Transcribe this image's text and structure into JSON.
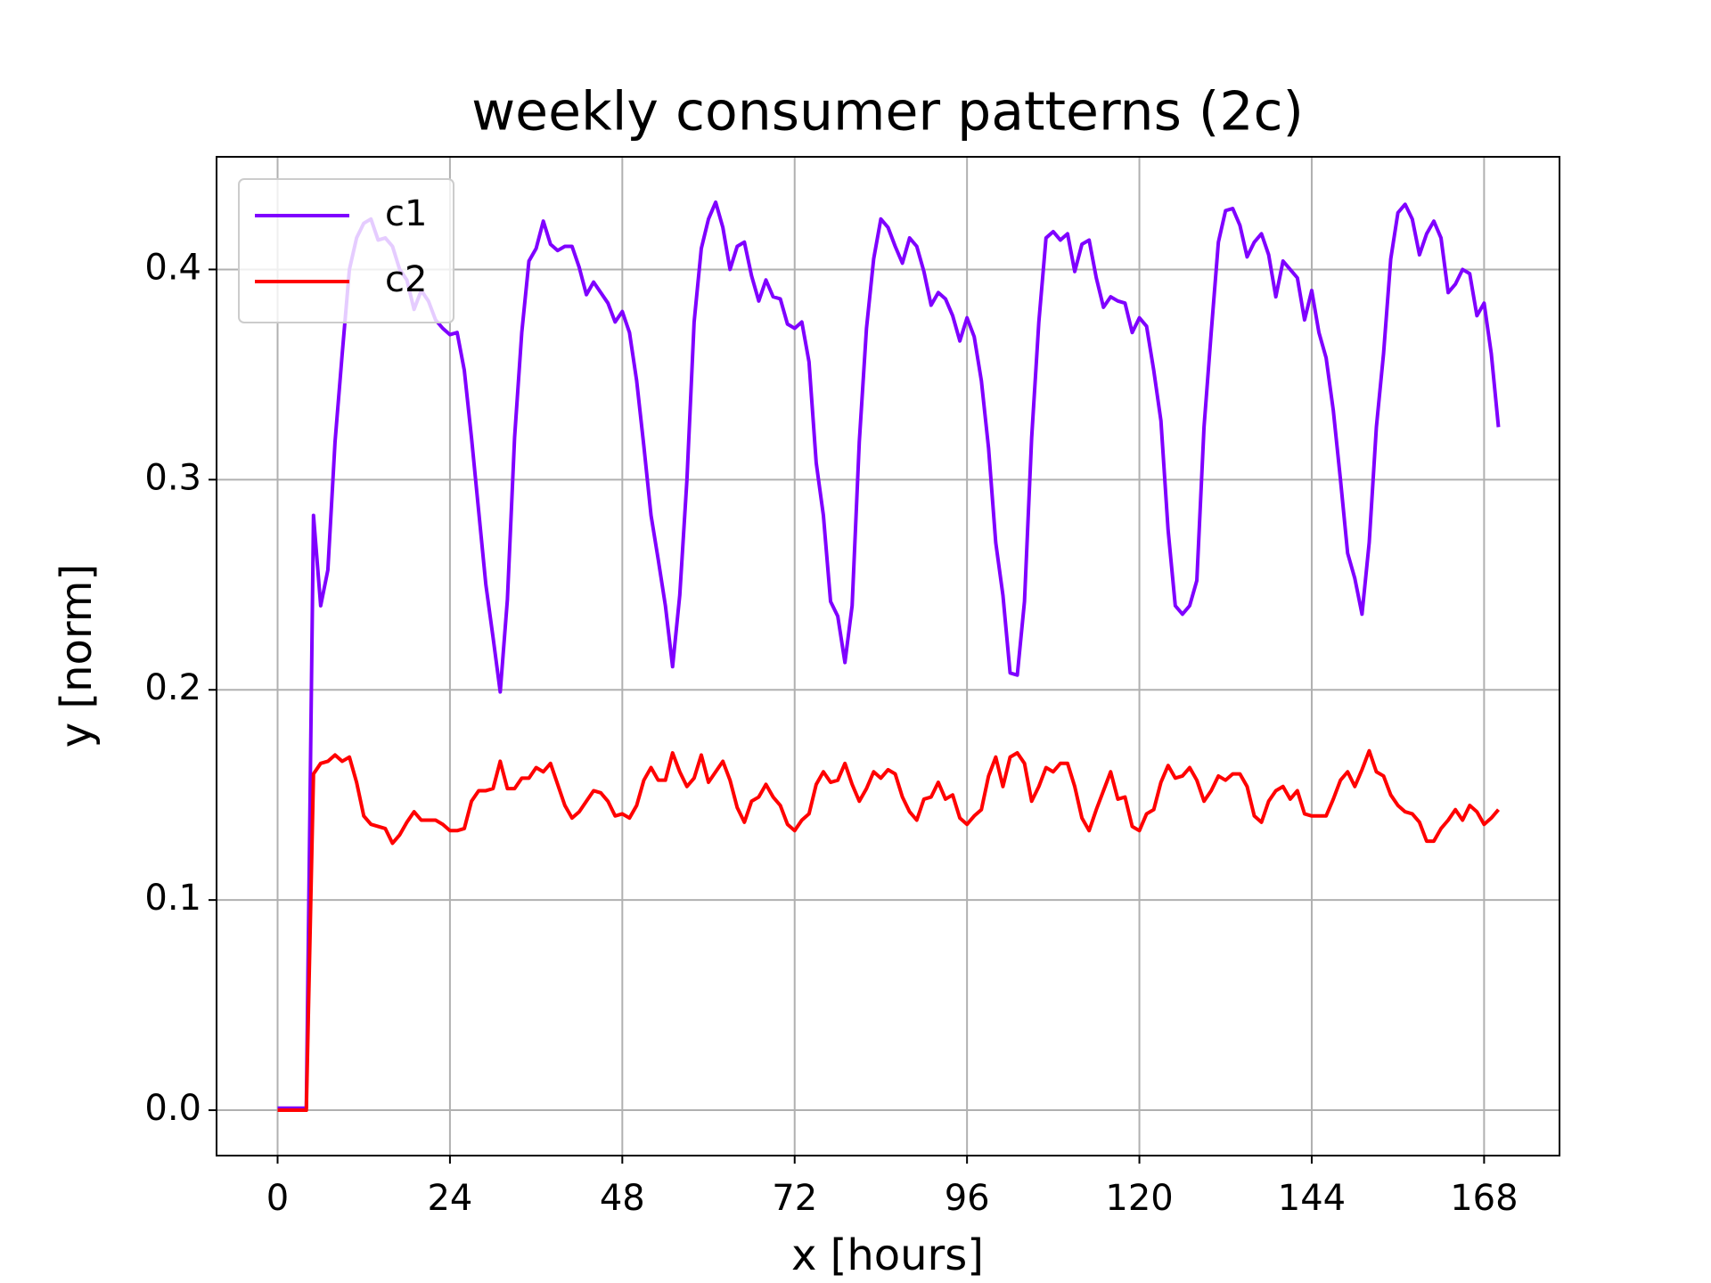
{
  "chart_data": {
    "type": "line",
    "title": "weekly consumer patterns (2c)",
    "x_label": "x [hours]",
    "y_label": "y [norm]",
    "x": [
      0,
      1,
      2,
      3,
      4,
      5,
      6,
      7,
      8,
      9,
      10,
      11,
      12,
      13,
      14,
      15,
      16,
      17,
      18,
      19,
      20,
      21,
      22,
      23,
      24,
      25,
      26,
      27,
      28,
      29,
      30,
      31,
      32,
      33,
      34,
      35,
      36,
      37,
      38,
      39,
      40,
      41,
      42,
      43,
      44,
      45,
      46,
      47,
      48,
      49,
      50,
      51,
      52,
      53,
      54,
      55,
      56,
      57,
      58,
      59,
      60,
      61,
      62,
      63,
      64,
      65,
      66,
      67,
      68,
      69,
      70,
      71,
      72,
      73,
      74,
      75,
      76,
      77,
      78,
      79,
      80,
      81,
      82,
      83,
      84,
      85,
      86,
      87,
      88,
      89,
      90,
      91,
      92,
      93,
      94,
      95,
      96,
      97,
      98,
      99,
      100,
      101,
      102,
      103,
      104,
      105,
      106,
      107,
      108,
      109,
      110,
      111,
      112,
      113,
      114,
      115,
      116,
      117,
      118,
      119,
      120,
      121,
      122,
      123,
      124,
      125,
      126,
      127,
      128,
      129,
      130,
      131,
      132,
      133,
      134,
      135,
      136,
      137,
      138,
      139,
      140,
      141,
      142,
      143,
      144,
      145,
      146,
      147,
      148,
      149,
      150,
      151,
      152,
      153,
      154,
      155,
      156,
      157,
      158,
      159,
      160,
      161,
      162,
      163,
      164,
      165,
      166,
      167,
      168,
      169,
      170
    ],
    "series": [
      {
        "name": "c1",
        "color": "#7f00ff",
        "values": [
          0.001,
          0.001,
          0.001,
          0.001,
          0.001,
          0.283,
          0.24,
          0.257,
          0.318,
          0.36,
          0.4,
          0.415,
          0.422,
          0.424,
          0.414,
          0.415,
          0.411,
          0.4,
          0.395,
          0.381,
          0.39,
          0.385,
          0.376,
          0.372,
          0.369,
          0.37,
          0.352,
          0.32,
          0.285,
          0.25,
          0.225,
          0.199,
          0.243,
          0.32,
          0.37,
          0.404,
          0.41,
          0.423,
          0.412,
          0.409,
          0.411,
          0.411,
          0.401,
          0.388,
          0.394,
          0.389,
          0.384,
          0.375,
          0.38,
          0.37,
          0.347,
          0.316,
          0.283,
          0.262,
          0.24,
          0.211,
          0.245,
          0.3,
          0.375,
          0.41,
          0.424,
          0.432,
          0.42,
          0.4,
          0.411,
          0.413,
          0.397,
          0.385,
          0.395,
          0.387,
          0.386,
          0.374,
          0.372,
          0.375,
          0.356,
          0.308,
          0.283,
          0.242,
          0.235,
          0.213,
          0.24,
          0.318,
          0.372,
          0.405,
          0.424,
          0.42,
          0.411,
          0.403,
          0.415,
          0.411,
          0.399,
          0.383,
          0.389,
          0.386,
          0.378,
          0.366,
          0.377,
          0.368,
          0.347,
          0.315,
          0.27,
          0.245,
          0.208,
          0.207,
          0.242,
          0.32,
          0.375,
          0.415,
          0.418,
          0.414,
          0.417,
          0.399,
          0.412,
          0.414,
          0.396,
          0.382,
          0.387,
          0.385,
          0.384,
          0.37,
          0.377,
          0.373,
          0.352,
          0.328,
          0.276,
          0.24,
          0.236,
          0.24,
          0.252,
          0.325,
          0.37,
          0.413,
          0.428,
          0.429,
          0.421,
          0.406,
          0.413,
          0.417,
          0.407,
          0.387,
          0.404,
          0.4,
          0.396,
          0.376,
          0.39,
          0.37,
          0.358,
          0.333,
          0.3,
          0.265,
          0.253,
          0.236,
          0.27,
          0.325,
          0.36,
          0.405,
          0.427,
          0.431,
          0.424,
          0.407,
          0.417,
          0.423,
          0.415,
          0.389,
          0.393,
          0.4,
          0.398,
          0.378,
          0.384,
          0.36,
          0.325
        ]
      },
      {
        "name": "c2",
        "color": "#ff0000",
        "values": [
          0,
          0,
          0,
          0,
          0,
          0.16,
          0.165,
          0.166,
          0.169,
          0.166,
          0.168,
          0.156,
          0.14,
          0.136,
          0.135,
          0.134,
          0.127,
          0.131,
          0.137,
          0.142,
          0.138,
          0.138,
          0.138,
          0.136,
          0.133,
          0.133,
          0.134,
          0.147,
          0.152,
          0.152,
          0.153,
          0.166,
          0.153,
          0.153,
          0.158,
          0.158,
          0.163,
          0.161,
          0.165,
          0.155,
          0.145,
          0.139,
          0.142,
          0.147,
          0.152,
          0.151,
          0.147,
          0.14,
          0.141,
          0.139,
          0.145,
          0.157,
          0.163,
          0.157,
          0.157,
          0.17,
          0.161,
          0.154,
          0.158,
          0.169,
          0.156,
          0.161,
          0.166,
          0.157,
          0.144,
          0.137,
          0.147,
          0.149,
          0.155,
          0.149,
          0.145,
          0.136,
          0.133,
          0.138,
          0.141,
          0.155,
          0.161,
          0.156,
          0.157,
          0.165,
          0.155,
          0.147,
          0.153,
          0.161,
          0.158,
          0.162,
          0.16,
          0.149,
          0.142,
          0.138,
          0.148,
          0.149,
          0.156,
          0.148,
          0.15,
          0.139,
          0.136,
          0.14,
          0.143,
          0.159,
          0.168,
          0.154,
          0.168,
          0.17,
          0.165,
          0.147,
          0.154,
          0.163,
          0.161,
          0.165,
          0.165,
          0.154,
          0.139,
          0.133,
          0.143,
          0.152,
          0.161,
          0.148,
          0.149,
          0.135,
          0.133,
          0.141,
          0.143,
          0.156,
          0.164,
          0.158,
          0.159,
          0.163,
          0.157,
          0.147,
          0.152,
          0.159,
          0.157,
          0.16,
          0.16,
          0.154,
          0.14,
          0.137,
          0.147,
          0.152,
          0.154,
          0.148,
          0.152,
          0.141,
          0.14,
          0.14,
          0.14,
          0.148,
          0.157,
          0.161,
          0.154,
          0.162,
          0.171,
          0.161,
          0.159,
          0.15,
          0.145,
          0.142,
          0.141,
          0.137,
          0.128,
          0.128,
          0.134,
          0.138,
          0.143,
          0.138,
          0.145,
          0.142,
          0.136,
          0.139,
          0.143
        ]
      }
    ],
    "xlim": [
      -8.5,
      178.5
    ],
    "xticks": [
      0,
      24,
      48,
      72,
      96,
      120,
      144,
      168
    ],
    "ylim": [
      -0.0216,
      0.4536
    ],
    "yticks": [
      {
        "value": 0,
        "label": "0.0"
      },
      0.1,
      0.2,
      0.3,
      0.4
    ],
    "grid": true,
    "legend": "upper left"
  }
}
